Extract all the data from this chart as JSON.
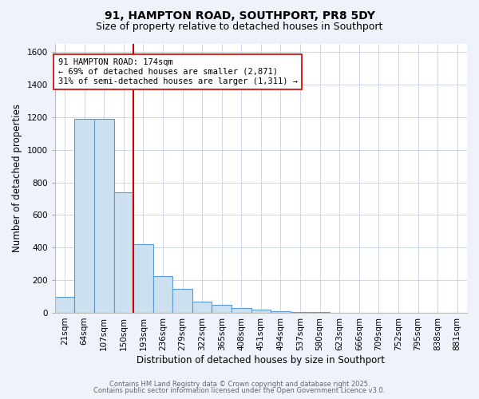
{
  "title": "91, HAMPTON ROAD, SOUTHPORT, PR8 5DY",
  "subtitle": "Size of property relative to detached houses in Southport",
  "xlabel": "Distribution of detached houses by size in Southport",
  "ylabel": "Number of detached properties",
  "bar_labels": [
    "21sqm",
    "64sqm",
    "107sqm",
    "150sqm",
    "193sqm",
    "236sqm",
    "279sqm",
    "322sqm",
    "365sqm",
    "408sqm",
    "451sqm",
    "494sqm",
    "537sqm",
    "580sqm",
    "623sqm",
    "666sqm",
    "709sqm",
    "752sqm",
    "795sqm",
    "838sqm",
    "881sqm"
  ],
  "bar_values": [
    100,
    1190,
    1190,
    740,
    420,
    225,
    148,
    68,
    50,
    30,
    18,
    10,
    6,
    3,
    2,
    1,
    1,
    0.5,
    0,
    0,
    0.5
  ],
  "bar_color": "#cce0f0",
  "bar_edge_color": "#5b9bd5",
  "vline_x": 3.0,
  "vline_color": "#cc0000",
  "annotation_title": "91 HAMPTON ROAD: 174sqm",
  "annotation_line1": "← 69% of detached houses are smaller (2,871)",
  "annotation_line2": "31% of semi-detached houses are larger (1,311) →",
  "annotation_box_color": "#ffffff",
  "annotation_box_edge": "#cc0000",
  "ylim": [
    0,
    1650
  ],
  "yticks": [
    0,
    200,
    400,
    600,
    800,
    1000,
    1200,
    1400,
    1600
  ],
  "bg_color": "#eef2fb",
  "plot_bg_color": "#ffffff",
  "footer1": "Contains HM Land Registry data © Crown copyright and database right 2025.",
  "footer2": "Contains public sector information licensed under the Open Government Licence v3.0.",
  "title_fontsize": 10,
  "subtitle_fontsize": 9,
  "axis_label_fontsize": 8.5,
  "tick_fontsize": 7.5,
  "annotation_fontsize": 7.5,
  "footer_fontsize": 6.0
}
